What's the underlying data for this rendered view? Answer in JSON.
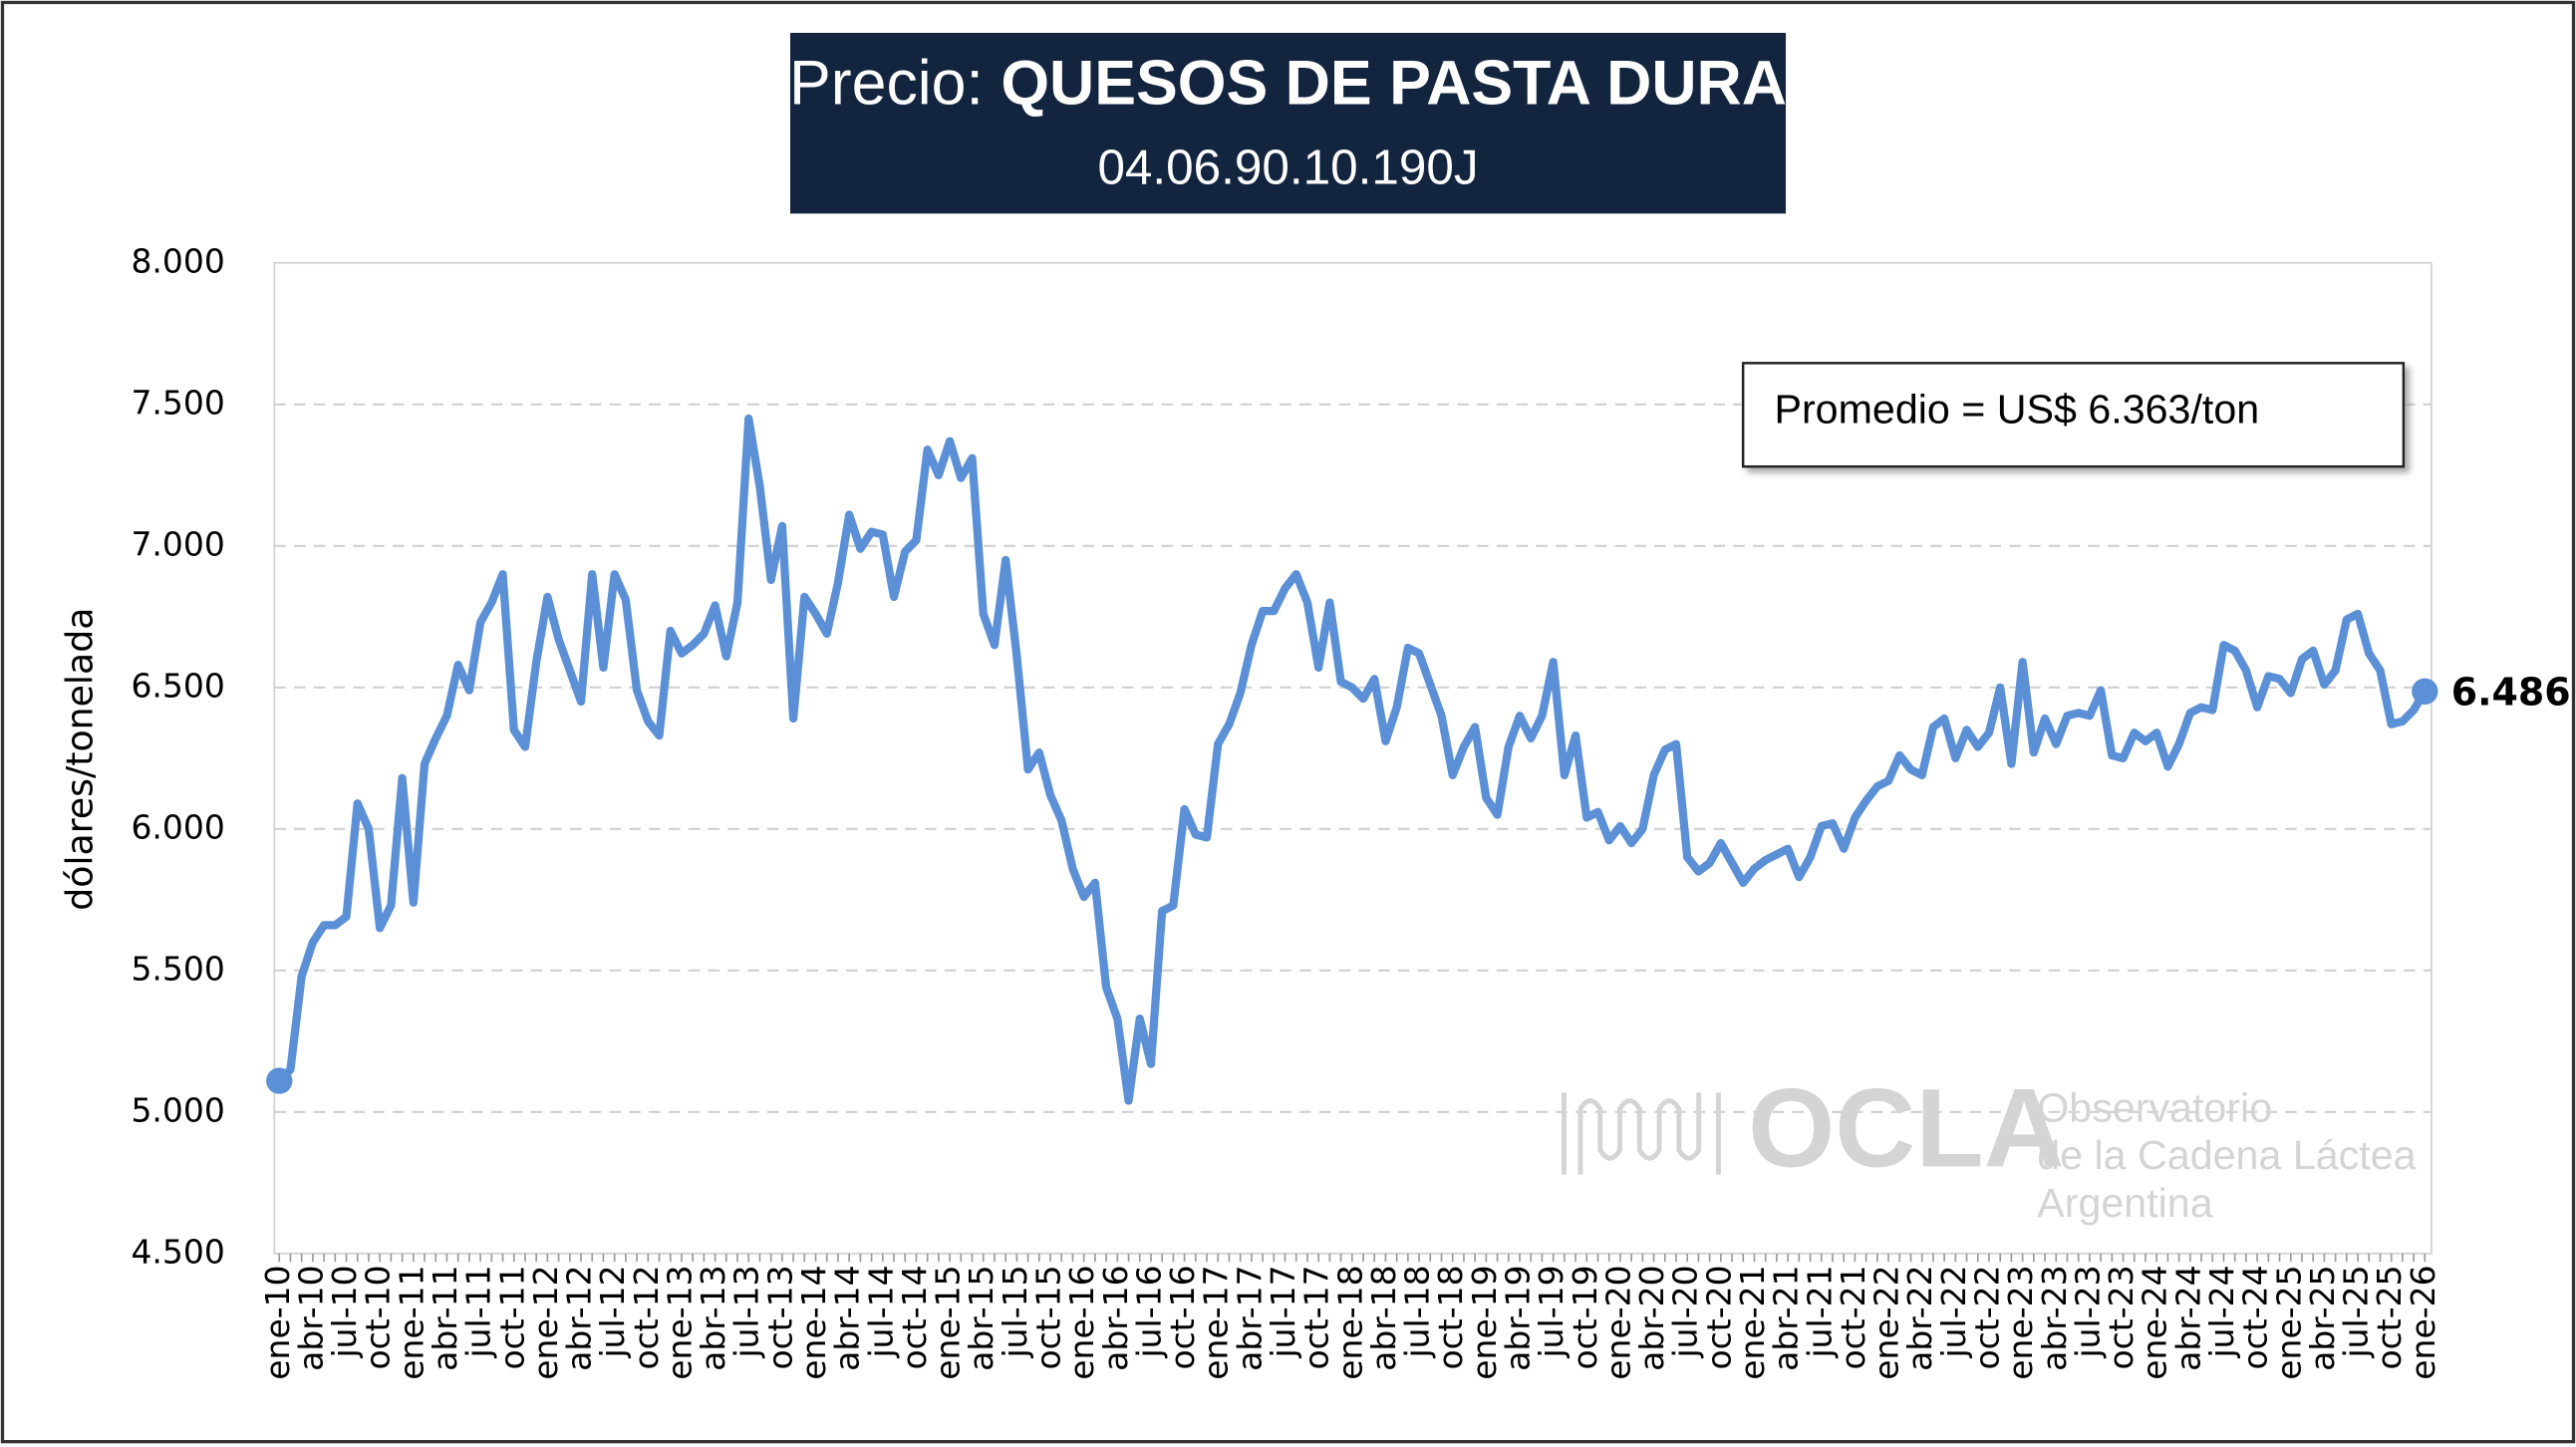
{
  "chart_data": {
    "type": "line",
    "title_prefix": "Precio:",
    "title": "QUESOS DE PASTA DURA",
    "subtitle": "04.06.90.10.190J",
    "y_label": "dólares/tonelada",
    "annotation": "Promedio = US$ 6.363/ton",
    "watermark": {
      "logo": "OCLA",
      "lines": [
        "Observatorio",
        "de la Cadena Láctea",
        "Argentina"
      ]
    },
    "color": "#5b8fd6",
    "grid": true,
    "ylim": [
      4500,
      8000
    ],
    "yticks": [
      {
        "value": 4500,
        "label": "4.500"
      },
      {
        "value": 5000,
        "label": "5.000"
      },
      {
        "value": 5500,
        "label": "5.500"
      },
      {
        "value": 6000,
        "label": "6.000"
      },
      {
        "value": 6500,
        "label": "6.500"
      },
      {
        "value": 7000,
        "label": "7.000"
      },
      {
        "value": 7500,
        "label": "7.500"
      },
      {
        "value": 8000,
        "label": "8.000"
      }
    ],
    "categories": [
      "ene-10",
      null,
      null,
      "abr-10",
      null,
      null,
      "jul-10",
      null,
      null,
      "oct-10",
      null,
      null,
      "ene-11",
      null,
      null,
      "abr-11",
      null,
      null,
      "jul-11",
      null,
      null,
      "oct-11",
      null,
      null,
      "ene-12",
      null,
      null,
      "abr-12",
      null,
      null,
      "jul-12",
      null,
      null,
      "oct-12",
      null,
      null,
      "ene-13",
      null,
      null,
      "abr-13",
      null,
      null,
      "jul-13",
      null,
      null,
      "oct-13",
      null,
      null,
      "ene-14",
      null,
      null,
      "abr-14",
      null,
      null,
      "jul-14",
      null,
      null,
      "oct-14",
      null,
      null,
      "ene-15",
      null,
      null,
      "abr-15",
      null,
      null,
      "jul-15",
      null,
      null,
      "oct-15",
      null,
      null,
      "ene-16",
      null,
      null,
      "abr-16",
      null,
      null,
      "jul-16",
      null,
      null,
      "oct-16",
      null,
      null,
      "ene-17",
      null,
      null,
      "abr-17",
      null,
      null,
      "jul-17",
      null,
      null,
      "oct-17",
      null,
      null,
      "ene-18",
      null,
      null,
      "abr-18",
      null,
      null,
      "jul-18",
      null,
      null,
      "oct-18",
      null,
      null,
      "ene-19",
      null,
      null,
      "abr-19",
      null,
      null,
      "jul-19",
      null,
      null,
      "oct-19",
      null,
      null,
      "ene-20",
      null,
      null,
      "abr-20",
      null,
      null,
      "jul-20",
      null,
      null,
      "oct-20",
      null,
      null,
      "ene-21",
      null,
      null,
      "abr-21",
      null,
      null,
      "jul-21",
      null,
      null,
      "oct-21",
      null,
      null,
      "ene-22",
      null,
      null,
      "abr-22",
      null,
      null,
      "jul-22",
      null,
      null,
      "oct-22",
      null,
      null,
      "ene-23",
      null,
      null,
      "abr-23",
      null,
      null,
      "jul-23",
      null,
      null,
      "oct-23",
      null,
      null,
      "ene-24",
      null,
      null,
      "abr-24",
      null,
      null,
      "jul-24",
      null,
      null,
      "oct-24",
      null,
      null,
      "ene-25",
      null,
      null,
      "abr-25",
      null,
      null,
      "jul-25",
      null,
      null,
      "oct-25",
      null,
      null,
      "ene-26"
    ],
    "values": [
      5110,
      5150,
      5480,
      5600,
      5660,
      5660,
      5690,
      6090,
      6000,
      5650,
      5730,
      6180,
      5740,
      6230,
      6320,
      6400,
      6580,
      6490,
      6730,
      6800,
      6900,
      6350,
      6290,
      6590,
      6820,
      6670,
      6560,
      6450,
      6900,
      6570,
      6900,
      6810,
      6490,
      6380,
      6330,
      6700,
      6620,
      6650,
      6690,
      6790,
      6610,
      6800,
      7450,
      7210,
      6880,
      7070,
      6390,
      6820,
      6760,
      6690,
      6870,
      7110,
      6990,
      7050,
      7040,
      6820,
      6980,
      7020,
      7340,
      7250,
      7370,
      7240,
      7310,
      6760,
      6650,
      6950,
      6610,
      6210,
      6270,
      6120,
      6030,
      5860,
      5760,
      5810,
      5440,
      5330,
      5040,
      5330,
      5170,
      5710,
      5730,
      6070,
      5980,
      5970,
      6300,
      6370,
      6480,
      6650,
      6770,
      6770,
      6850,
      6900,
      6800,
      6570,
      6800,
      6520,
      6500,
      6460,
      6530,
      6310,
      6430,
      6640,
      6620,
      6510,
      6400,
      6190,
      6290,
      6360,
      6110,
      6050,
      6290,
      6400,
      6320,
      6400,
      6590,
      6190,
      6330,
      6040,
      6060,
      5960,
      6010,
      5950,
      6000,
      6190,
      6280,
      6300,
      5900,
      5850,
      5880,
      5950,
      5880,
      5810,
      5860,
      5890,
      5910,
      5930,
      5830,
      5900,
      6010,
      6020,
      5930,
      6040,
      6100,
      6150,
      6170,
      6260,
      6210,
      6190,
      6360,
      6390,
      6250,
      6350,
      6290,
      6340,
      6500,
      6230,
      6590,
      6270,
      6390,
      6300,
      6400,
      6410,
      6400,
      6490,
      6260,
      6250,
      6340,
      6310,
      6340,
      6220,
      6300,
      6410,
      6430,
      6420,
      6650,
      6630,
      6560,
      6430,
      6540,
      6530,
      6480,
      6600,
      6630,
      6510,
      6560,
      6740,
      6760,
      6620,
      6560,
      6370,
      6380,
      6420,
      6486
    ],
    "value_labels": [
      null,
      null,
      null,
      null,
      null,
      null,
      null,
      null,
      null,
      null,
      null,
      null,
      null,
      null,
      null,
      null,
      null,
      null,
      null,
      null,
      null,
      null,
      null,
      null,
      null,
      null,
      null,
      null,
      null,
      null,
      null,
      null,
      null,
      null,
      null,
      null,
      null,
      null,
      null,
      null,
      null,
      null,
      null,
      null,
      null,
      null,
      null,
      null,
      null,
      null,
      null,
      null,
      null,
      null,
      null,
      null,
      null,
      null,
      null,
      null,
      null,
      null,
      null,
      null,
      null,
      null,
      null,
      null,
      null,
      null,
      null,
      null,
      null,
      null,
      null,
      null,
      null,
      null,
      null,
      null,
      null,
      null,
      null,
      null,
      null,
      null,
      null,
      null,
      null,
      null,
      null,
      null,
      null,
      null,
      null,
      null,
      null,
      null,
      null,
      null,
      null,
      null,
      null,
      null,
      null,
      null,
      null,
      null,
      null,
      null,
      null,
      null,
      null,
      null,
      null,
      null,
      null,
      null,
      null,
      null,
      null,
      null,
      null,
      null,
      null,
      null,
      null,
      null,
      null,
      null,
      null,
      null,
      null,
      null,
      null,
      null,
      null,
      null,
      null,
      null,
      null,
      null,
      null,
      null,
      null,
      null,
      null,
      null,
      null,
      null,
      null,
      null,
      null,
      null,
      null,
      null,
      null,
      null,
      null,
      null,
      null,
      null,
      null,
      null,
      null,
      null,
      null,
      null,
      null,
      null,
      null,
      null,
      null,
      null,
      null,
      null,
      null,
      null,
      null,
      null,
      null,
      null,
      null,
      null,
      null,
      null,
      null,
      null,
      null,
      null,
      null,
      null,
      "6.486"
    ]
  }
}
